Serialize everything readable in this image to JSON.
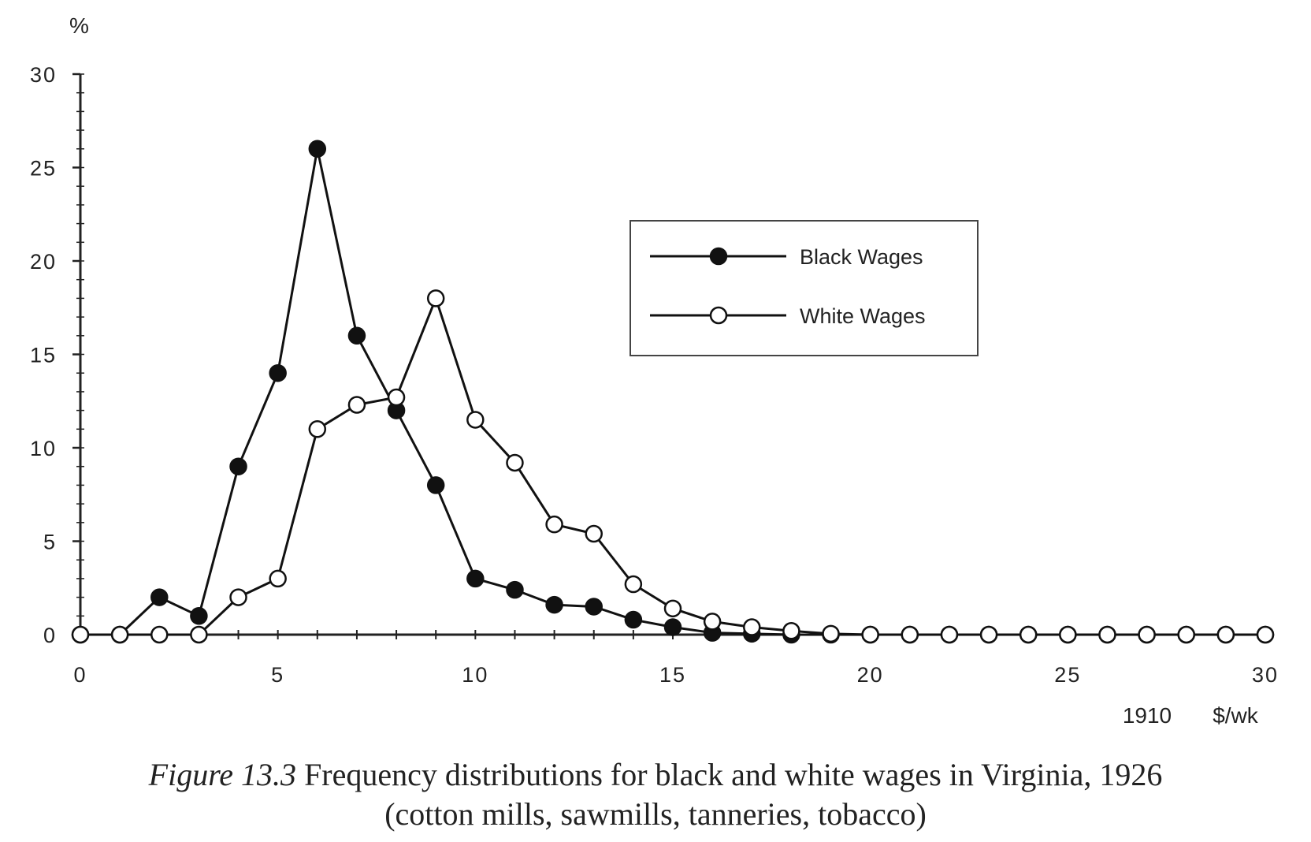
{
  "chart_data": {
    "type": "line",
    "ylabel": "%",
    "xlabel_prefix": "1910",
    "xlabel_unit": "$/wk",
    "xlim": [
      0,
      30
    ],
    "ylim": [
      0,
      30
    ],
    "xticks": [
      "0",
      "5",
      "10",
      "15",
      "20",
      "25",
      "30"
    ],
    "yticks": [
      "0",
      "5",
      "10",
      "15",
      "20",
      "25",
      "30"
    ],
    "legend_position": "upper-right",
    "x": [
      0,
      1,
      2,
      3,
      4,
      5,
      6,
      7,
      8,
      9,
      10,
      11,
      12,
      13,
      14,
      15,
      16,
      17,
      18,
      19,
      20,
      21,
      22,
      23,
      24,
      25,
      26,
      27,
      28,
      29,
      30
    ],
    "series": [
      {
        "name": "Black Wages",
        "marker": "filled-circle",
        "color": "#111111",
        "values": [
          0,
          0,
          2,
          1,
          9,
          14,
          26,
          16,
          12,
          8,
          3,
          2.4,
          1.6,
          1.5,
          0.8,
          0.4,
          0.1,
          0.05,
          0,
          0,
          0,
          0,
          0,
          0,
          0,
          0,
          0,
          0,
          0,
          0,
          0
        ]
      },
      {
        "name": "White Wages",
        "marker": "open-circle",
        "color": "#111111",
        "values": [
          0,
          0,
          0,
          0,
          2,
          3,
          11,
          12.3,
          12.7,
          18,
          11.5,
          9.2,
          5.9,
          5.4,
          2.7,
          1.4,
          0.7,
          0.4,
          0.2,
          0.05,
          0,
          0,
          0,
          0,
          0,
          0,
          0,
          0,
          0,
          0,
          0
        ]
      }
    ]
  },
  "caption": {
    "figure_label": "Figure 13.3",
    "line1": "Frequency distributions for black and white wages in Virginia, 1926",
    "line2": "(cotton mills, sawmills, tanneries, tobacco)"
  }
}
